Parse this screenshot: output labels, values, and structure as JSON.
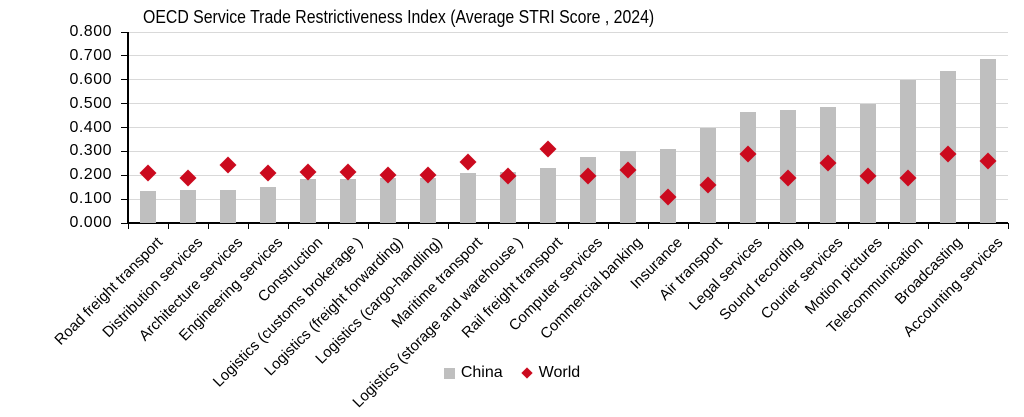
{
  "title": "OECD Service Trade Restrictiveness Index (Average STRI Score , 2024)",
  "legend": {
    "items": [
      {
        "label": "China",
        "marker": "square",
        "color": "#bfbfbf"
      },
      {
        "label": "World",
        "marker": "diamond",
        "color": "#cb0a1e"
      }
    ],
    "position": "bottom"
  },
  "chart_data": {
    "type": "bar",
    "title": "OECD Service Trade Restrictiveness Index (Average STRI Score , 2024)",
    "categories": [
      "Road freight transport",
      "Distribution services",
      "Architecture services",
      "Engineering services",
      "Construction",
      "Logistics (customs brokerage )",
      "Logistics (freight forwarding)",
      "Logistics (cargo-handling)",
      "Maritime transport",
      "Logistics (storage and warehouse )",
      "Rail freight transport",
      "Computer services",
      "Commercial banking",
      "Insurance",
      "Air transport",
      "Legal services",
      "Sound recording",
      "Courier services",
      "Motion pictures",
      "Telecommunication",
      "Broadcasting",
      "Accounting services"
    ],
    "series": [
      {
        "name": "China",
        "type": "bar",
        "color": "#bfbfbf",
        "values": [
          0.135,
          0.14,
          0.14,
          0.15,
          0.185,
          0.185,
          0.19,
          0.19,
          0.21,
          0.215,
          0.23,
          0.275,
          0.3,
          0.31,
          0.4,
          0.465,
          0.475,
          0.485,
          0.5,
          0.6,
          0.635,
          0.685
        ]
      },
      {
        "name": "World",
        "type": "scatter",
        "marker": "diamond",
        "color": "#cb0a1e",
        "values": [
          0.21,
          0.19,
          0.245,
          0.21,
          0.215,
          0.215,
          0.2,
          0.2,
          0.255,
          0.195,
          0.31,
          0.195,
          0.22,
          0.11,
          0.16,
          0.29,
          0.19,
          0.25,
          0.195,
          0.19,
          0.29,
          0.26
        ]
      }
    ],
    "xlabel": "",
    "ylabel": "",
    "ylim": [
      0,
      0.8
    ],
    "ytick_labels": [
      "0.000",
      "0.100",
      "0.200",
      "0.300",
      "0.400",
      "0.500",
      "0.600",
      "0.700",
      "0.800"
    ],
    "grid": "horizontal",
    "gridline_color": "#d9d9d9",
    "legend_position": "bottom"
  }
}
